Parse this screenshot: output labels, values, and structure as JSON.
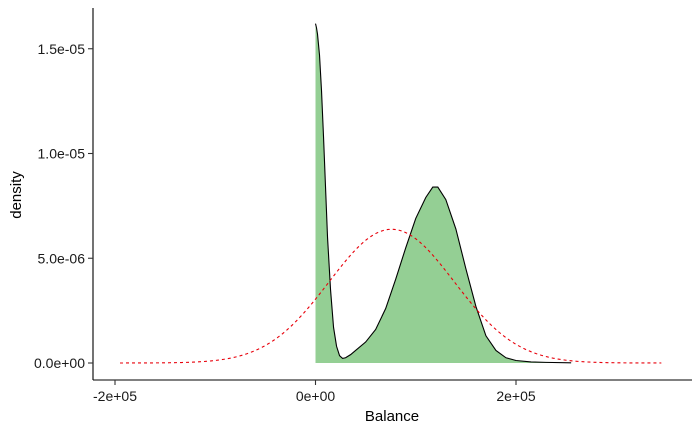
{
  "chart_data": {
    "type": "area",
    "title": "",
    "xlabel": "Balance",
    "ylabel": "density",
    "xlim": [
      -200000,
      350000
    ],
    "ylim": [
      0,
      1.65e-05
    ],
    "x_ticks": [
      -200000,
      0,
      200000
    ],
    "x_tick_labels": [
      "-2e+05",
      "0e+00",
      "2e+05"
    ],
    "y_ticks": [
      0,
      5e-06,
      1e-05,
      1.5e-05
    ],
    "y_tick_labels": [
      "0.0e+00",
      "5.0e-06",
      "1.0e-05",
      "1.5e-05"
    ],
    "grid": false,
    "legend": "none",
    "series": [
      {
        "kind": "density-area",
        "color_fill": "#94cf94",
        "color_line": "#000000",
        "points": [
          [
            0,
            1.62e-05
          ],
          [
            1000,
            1.6e-05
          ],
          [
            2000,
            1.57e-05
          ],
          [
            4000,
            1.47e-05
          ],
          [
            6000,
            1.3e-05
          ],
          [
            8000,
            1.08e-05
          ],
          [
            10000,
            8.4e-06
          ],
          [
            12000,
            6e-06
          ],
          [
            15000,
            3.5e-06
          ],
          [
            18000,
            1.7e-06
          ],
          [
            21000,
            8e-07
          ],
          [
            24000,
            3.5e-07
          ],
          [
            27000,
            2.2e-07
          ],
          [
            30000,
            2.5e-07
          ],
          [
            35000,
            4e-07
          ],
          [
            40000,
            6e-07
          ],
          [
            50000,
            1e-06
          ],
          [
            60000,
            1.6e-06
          ],
          [
            70000,
            2.6e-06
          ],
          [
            80000,
            4e-06
          ],
          [
            90000,
            5.5e-06
          ],
          [
            100000,
            6.9e-06
          ],
          [
            110000,
            7.9e-06
          ],
          [
            117000,
            8.4e-06
          ],
          [
            122000,
            8.4e-06
          ],
          [
            130000,
            7.8e-06
          ],
          [
            140000,
            6.4e-06
          ],
          [
            150000,
            4.5e-06
          ],
          [
            160000,
            2.7e-06
          ],
          [
            170000,
            1.3e-06
          ],
          [
            180000,
            6e-07
          ],
          [
            190000,
            2.5e-07
          ],
          [
            200000,
            1.2e-07
          ],
          [
            215000,
            5e-08
          ],
          [
            230000,
            3e-08
          ],
          [
            255000,
            1e-08
          ]
        ]
      },
      {
        "kind": "normal-curve",
        "color_line": "#e8000b",
        "dash": "dashed",
        "mean": 76000,
        "sd": 62500,
        "x_range": [
          -195000,
          345000
        ]
      }
    ]
  }
}
